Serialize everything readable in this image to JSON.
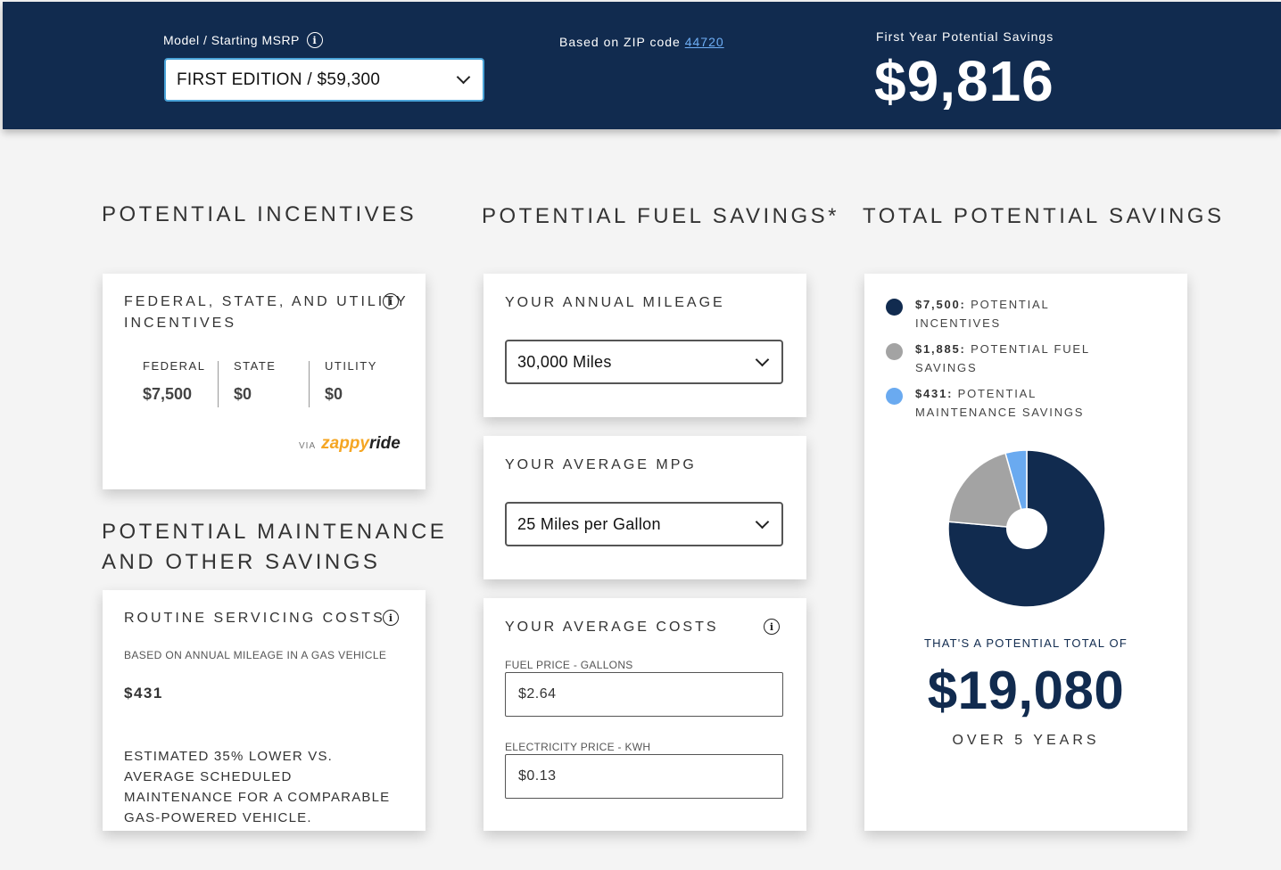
{
  "header": {
    "model_label": "Model / Starting MSRP",
    "model_selected": "FIRST EDITION / $59,300",
    "zip_prefix": "Based on ZIP code",
    "zip_code": "44720",
    "first_year_label": "First Year Potential Savings",
    "first_year_value": "$9,816"
  },
  "sections": {
    "incentives_title": "POTENTIAL INCENTIVES",
    "fuel_title": "POTENTIAL FUEL SAVINGS*",
    "total_title": "TOTAL POTENTIAL SAVINGS",
    "maintenance_title_line1": "POTENTIAL MAINTENANCE",
    "maintenance_title_line2": "AND OTHER SAVINGS"
  },
  "incentives_card": {
    "title_line1": "FEDERAL, STATE, AND UTILITY",
    "title_line2": "INCENTIVES",
    "columns": [
      {
        "label": "FEDERAL",
        "value": "$7,500"
      },
      {
        "label": "STATE",
        "value": "$0"
      },
      {
        "label": "UTILITY",
        "value": "$0"
      }
    ],
    "via": "VIA",
    "brand_a": "zappy",
    "brand_b": "ride"
  },
  "mileage_card": {
    "title": "YOUR ANNUAL MILEAGE",
    "selected": "30,000 Miles"
  },
  "mpg_card": {
    "title": "YOUR AVERAGE MPG",
    "selected": "25 Miles per Gallon"
  },
  "costs_card": {
    "title": "YOUR AVERAGE COSTS",
    "fuel_label": "FUEL PRICE - GALLONS",
    "fuel_value": "$2.64",
    "electricity_label": "ELECTRICITY PRICE - KWH",
    "electricity_value": "$0.13"
  },
  "maintenance_card": {
    "title": "ROUTINE SERVICING COSTS",
    "subtitle": "BASED ON ANNUAL MILEAGE IN A GAS VEHICLE",
    "value": "$431",
    "note": "ESTIMATED 35% LOWER VS. AVERAGE SCHEDULED MAINTENANCE FOR A COMPARABLE GAS-POWERED VEHICLE."
  },
  "total_card": {
    "legend": [
      {
        "amount": "$7,500:",
        "label": "POTENTIAL INCENTIVES",
        "color": "#112b4f"
      },
      {
        "amount": "$1,885:",
        "label": "POTENTIAL FUEL SAVINGS",
        "color": "#a3a3a3"
      },
      {
        "amount": "$431:",
        "label": "POTENTIAL MAINTENANCE SAVINGS",
        "color": "#6aaaf0"
      }
    ],
    "chart_values": [
      7500,
      1885,
      431
    ],
    "total_label": "THAT'S A POTENTIAL TOTAL OF",
    "total_value": "$19,080",
    "years_label": "OVER 5 YEARS"
  },
  "colors": {
    "navy": "#112b4f",
    "link": "#6eaef5",
    "select_border": "#4aa3d8"
  }
}
